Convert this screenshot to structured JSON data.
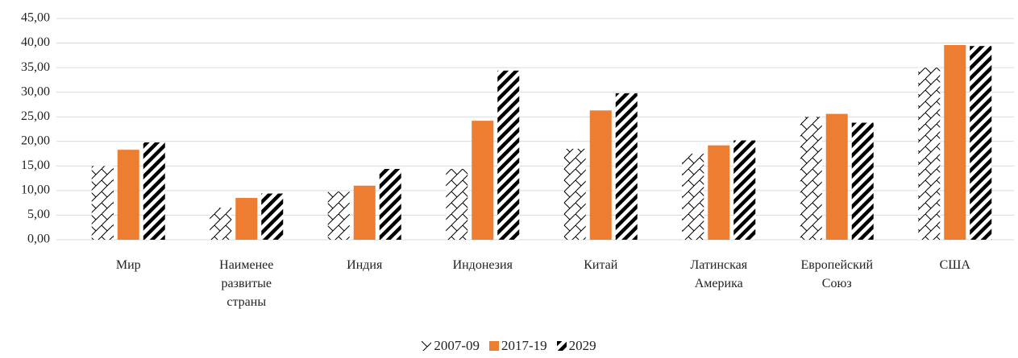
{
  "chart_data": {
    "type": "bar",
    "categories": [
      "Мир",
      "Наименее развитые страны",
      "Индия",
      "Индонезия",
      "Китай",
      "Латинская Америка",
      "Европейский Союз",
      "США"
    ],
    "series": [
      {
        "name": "2007-09",
        "color": "#000000",
        "values": [
          15.0,
          6.5,
          9.8,
          14.4,
          18.5,
          17.5,
          25.0,
          35.0
        ]
      },
      {
        "name": "2017-19",
        "color": "#ed7d31",
        "values": [
          18.3,
          8.5,
          11.0,
          24.2,
          26.3,
          19.2,
          25.6,
          39.6
        ]
      },
      {
        "name": "2029",
        "color": "#000000",
        "values": [
          19.8,
          9.4,
          14.4,
          34.4,
          29.8,
          20.2,
          23.8,
          39.4
        ]
      }
    ],
    "ylim": [
      0,
      45
    ],
    "yticks": [
      {
        "value": 0,
        "label": "0,00"
      },
      {
        "value": 5,
        "label": "5,00"
      },
      {
        "value": 10,
        "label": "10,00"
      },
      {
        "value": 15,
        "label": "15,00"
      },
      {
        "value": 20,
        "label": "20,00"
      },
      {
        "value": 25,
        "label": "25,00"
      },
      {
        "value": 30,
        "label": "30,00"
      },
      {
        "value": 35,
        "label": "35,00"
      },
      {
        "value": 40,
        "label": "40,00"
      },
      {
        "value": 45,
        "label": "45,00"
      }
    ],
    "grid": true,
    "legend": "bottom"
  }
}
